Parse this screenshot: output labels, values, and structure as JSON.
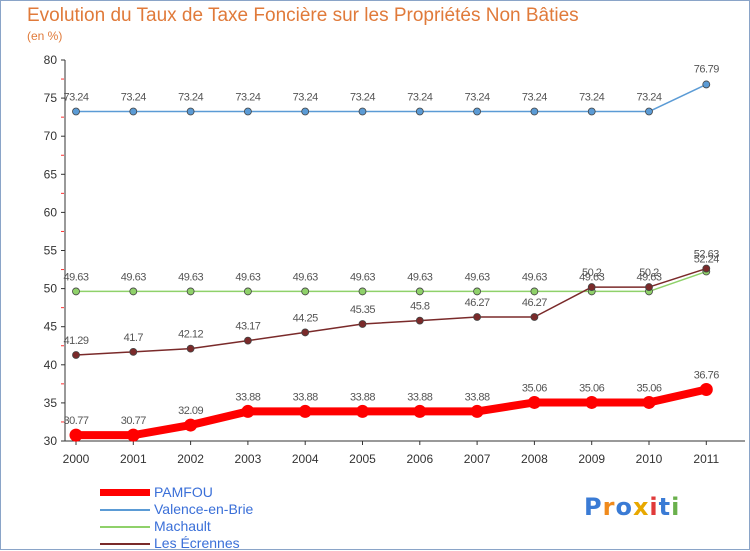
{
  "title": "Evolution du Taux de Taxe Foncière sur les Propriétés Non Bâties",
  "unit": "(en %)",
  "logo": "Proxiti",
  "chart_data": {
    "type": "line",
    "title": "Evolution du Taux de Taxe Foncière sur les Propriétés Non Bâties",
    "ylabel": "(en %)",
    "xlabel": "",
    "x": [
      "2000",
      "2001",
      "2002",
      "2003",
      "2004",
      "2005",
      "2006",
      "2007",
      "2008",
      "2009",
      "2010",
      "2011"
    ],
    "ylim": [
      30,
      80
    ],
    "yticks": [
      "30",
      "35",
      "40",
      "45",
      "50",
      "55",
      "60",
      "65",
      "70",
      "75",
      "80"
    ],
    "grid": false,
    "legend_position": "bottom-left",
    "series": [
      {
        "name": "PAMFOU",
        "color": "#ff0000",
        "values": [
          30.77,
          30.77,
          32.09,
          33.88,
          33.88,
          33.88,
          33.88,
          33.88,
          35.06,
          35.06,
          35.06,
          36.76
        ],
        "labels": [
          "30.77",
          "30.77",
          "32.09",
          "33.88",
          "33.88",
          "33.88",
          "33.88",
          "33.88",
          "35.06",
          "35.06",
          "35.06",
          "36.76"
        ]
      },
      {
        "name": "Valence-en-Brie",
        "color": "#5b9bd5",
        "values": [
          73.24,
          73.24,
          73.24,
          73.24,
          73.24,
          73.24,
          73.24,
          73.24,
          73.24,
          73.24,
          73.24,
          76.79
        ],
        "labels": [
          "73.24",
          "73.24",
          "73.24",
          "73.24",
          "73.24",
          "73.24",
          "73.24",
          "73.24",
          "73.24",
          "73.24",
          "73.24",
          "76.79"
        ]
      },
      {
        "name": "Machault",
        "color": "#8fd16a",
        "values": [
          49.63,
          49.63,
          49.63,
          49.63,
          49.63,
          49.63,
          49.63,
          49.63,
          49.63,
          49.63,
          49.63,
          52.24
        ],
        "labels": [
          "49.63",
          "49.63",
          "49.63",
          "49.63",
          "49.63",
          "49.63",
          "49.63",
          "49.63",
          "49.63",
          "49.63",
          "49.63",
          "52.24"
        ]
      },
      {
        "name": "Les Écrennes",
        "color": "#7a2a2a",
        "values": [
          41.29,
          41.7,
          42.12,
          43.17,
          44.25,
          45.35,
          45.8,
          46.27,
          46.27,
          50.2,
          50.2,
          52.63
        ],
        "labels": [
          "41.29",
          "41.7",
          "42.12",
          "43.17",
          "44.25",
          "45.35",
          "45.8",
          "46.27",
          "46.27",
          "50.2",
          "50.2",
          "52.63"
        ]
      }
    ]
  }
}
